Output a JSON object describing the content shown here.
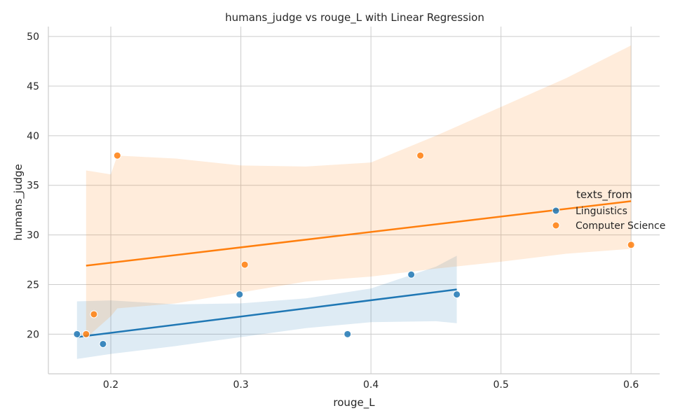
{
  "chart_data": {
    "type": "scatter",
    "title": "humans_judge vs rouge_L with Linear Regression",
    "xlabel": "rouge_L",
    "ylabel": "humans_judge",
    "xlim": [
      0.152,
      0.622
    ],
    "ylim": [
      16.0,
      51.0
    ],
    "xticks": [
      "0.2",
      "0.3",
      "0.4",
      "0.5",
      "0.6"
    ],
    "yticks": [
      "20",
      "25",
      "30",
      "35",
      "40",
      "45",
      "50"
    ],
    "grid": true,
    "legend_title": "texts_from",
    "legend_position": "right",
    "series": [
      {
        "name": "Linguistics",
        "color": "#1f77b4",
        "points": [
          {
            "x": 0.174,
            "y": 20
          },
          {
            "x": 0.194,
            "y": 19
          },
          {
            "x": 0.299,
            "y": 24
          },
          {
            "x": 0.382,
            "y": 20
          },
          {
            "x": 0.431,
            "y": 26
          },
          {
            "x": 0.466,
            "y": 24
          }
        ],
        "regression": {
          "x": [
            0.174,
            0.466
          ],
          "y": [
            19.7,
            24.5
          ]
        },
        "ci_band": {
          "x": [
            0.174,
            0.2,
            0.25,
            0.3,
            0.35,
            0.4,
            0.45,
            0.466
          ],
          "upper": [
            23.3,
            23.4,
            23.0,
            23.1,
            23.6,
            24.6,
            26.8,
            27.9
          ],
          "lower": [
            17.5,
            18.0,
            18.8,
            19.7,
            20.6,
            21.2,
            21.3,
            21.1
          ]
        }
      },
      {
        "name": "Computer Science",
        "color": "#ff7f0e",
        "points": [
          {
            "x": 0.181,
            "y": 20
          },
          {
            "x": 0.187,
            "y": 22
          },
          {
            "x": 0.205,
            "y": 38
          },
          {
            "x": 0.303,
            "y": 27
          },
          {
            "x": 0.438,
            "y": 38
          },
          {
            "x": 0.6,
            "y": 29
          }
        ],
        "regression": {
          "x": [
            0.181,
            0.6
          ],
          "y": [
            26.9,
            33.4
          ]
        },
        "ci_band": {
          "x": [
            0.181,
            0.2,
            0.205,
            0.25,
            0.3,
            0.35,
            0.4,
            0.45,
            0.5,
            0.55,
            0.6
          ],
          "upper": [
            36.5,
            36.1,
            38.0,
            37.7,
            37.0,
            36.9,
            37.3,
            40.0,
            42.9,
            45.8,
            49.1
          ],
          "lower": [
            19.6,
            21.8,
            22.6,
            23.1,
            24.2,
            25.3,
            25.8,
            26.6,
            27.3,
            28.1,
            28.6
          ]
        }
      }
    ]
  }
}
